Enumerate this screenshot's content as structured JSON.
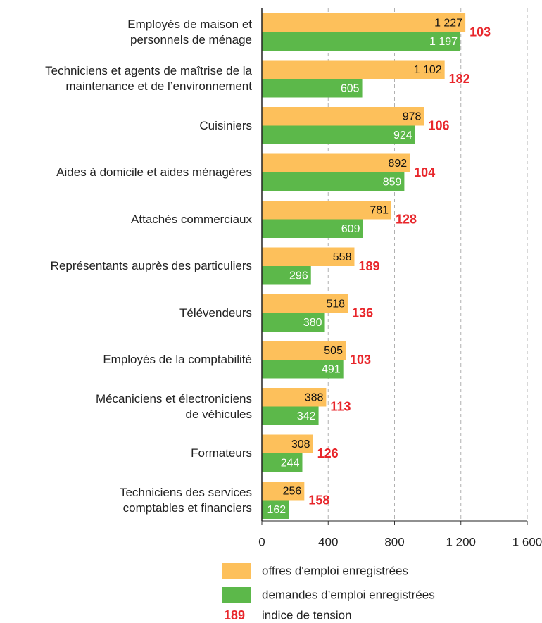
{
  "chart_data": {
    "type": "bar",
    "orientation": "horizontal",
    "categories": [
      "Employés de maison et\npersonnels de ménage",
      "Techniciens et agents de maîtrise de la\nmaintenance et de l’environnement",
      "Cuisiniers",
      "Aides à domicile et aides ménagères",
      "Attachés commerciaux",
      "Représentants auprès des particuliers",
      "Télévendeurs",
      "Employés de la comptabilité",
      "Mécaniciens et électroniciens\nde véhicules",
      "Formateurs",
      "Techniciens des services\ncomptables et financiers"
    ],
    "series": [
      {
        "name": "offres d'emploi enregistrées",
        "color": "#fdc05b",
        "label_color": "#111111",
        "values": [
          1227,
          1102,
          978,
          892,
          781,
          558,
          518,
          505,
          388,
          308,
          256
        ],
        "value_labels": [
          "1 227",
          "1 102",
          "978",
          "892",
          "781",
          "558",
          "518",
          "505",
          "388",
          "308",
          "256"
        ]
      },
      {
        "name": "demandes d’emploi enregistrées",
        "color": "#5cb84a",
        "label_color": "#ffffff",
        "values": [
          1197,
          605,
          924,
          859,
          609,
          296,
          380,
          491,
          342,
          244,
          162
        ],
        "value_labels": [
          "1 197",
          "605",
          "924",
          "859",
          "609",
          "296",
          "380",
          "491",
          "342",
          "244",
          "162"
        ]
      }
    ],
    "tension": {
      "name": "indice de tension",
      "color": "#e8262b",
      "values": [
        103,
        182,
        106,
        104,
        128,
        189,
        136,
        103,
        113,
        126,
        158
      ]
    },
    "xlim": [
      0,
      1600
    ],
    "xticks": [
      0,
      400,
      800,
      {
        "value": 1200,
        "label": "1 200"
      },
      {
        "value": 1600,
        "label": "1 600"
      }
    ],
    "grid": true
  }
}
